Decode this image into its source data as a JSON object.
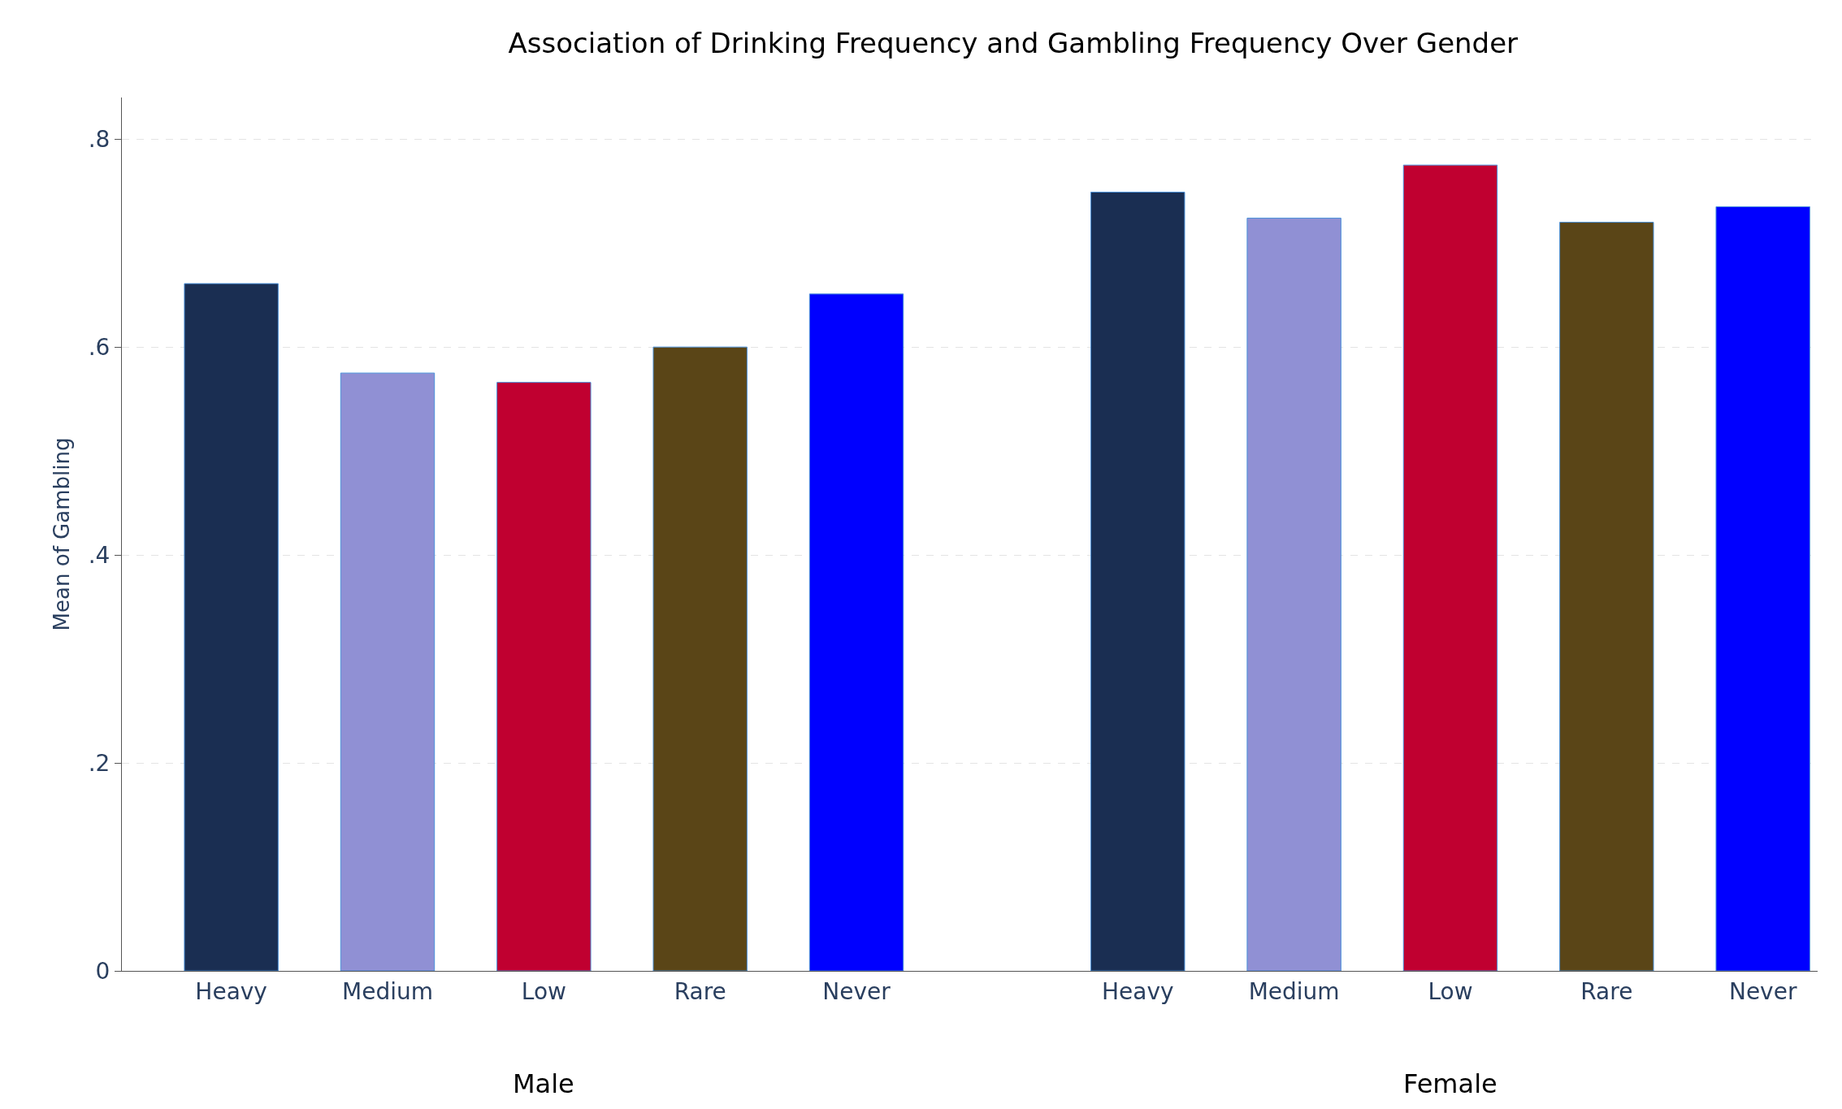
{
  "chart_data": {
    "type": "bar",
    "title": "Association of Drinking Frequency and Gambling Frequency Over Gender",
    "ylabel": "Mean of Gambling",
    "categories": [
      "Heavy",
      "Medium",
      "Low",
      "Rare",
      "Never",
      "Heavy",
      "Medium",
      "Low",
      "Rare",
      "Never"
    ],
    "values": [
      0.661,
      0.575,
      0.566,
      0.6,
      0.651,
      0.749,
      0.724,
      0.775,
      0.72,
      0.735
    ],
    "colors": [
      "#1a2e52",
      "#9090d4",
      "#c00030",
      "#5a4517",
      "#0000ff",
      "#1a2e52",
      "#9090d4",
      "#c00030",
      "#5a4517",
      "#0000ff"
    ],
    "annotations": [
      "Male",
      "Female"
    ],
    "ylim": [
      0,
      0.84
    ],
    "yticks": [
      0,
      {
        "value": 0.2,
        "label": ".2"
      },
      {
        "value": 0.4,
        "label": ".4"
      },
      {
        "value": 0.6,
        "label": ".6"
      },
      {
        "value": 0.8,
        "label": ".8"
      }
    ],
    "grid": "y",
    "legend": false
  }
}
